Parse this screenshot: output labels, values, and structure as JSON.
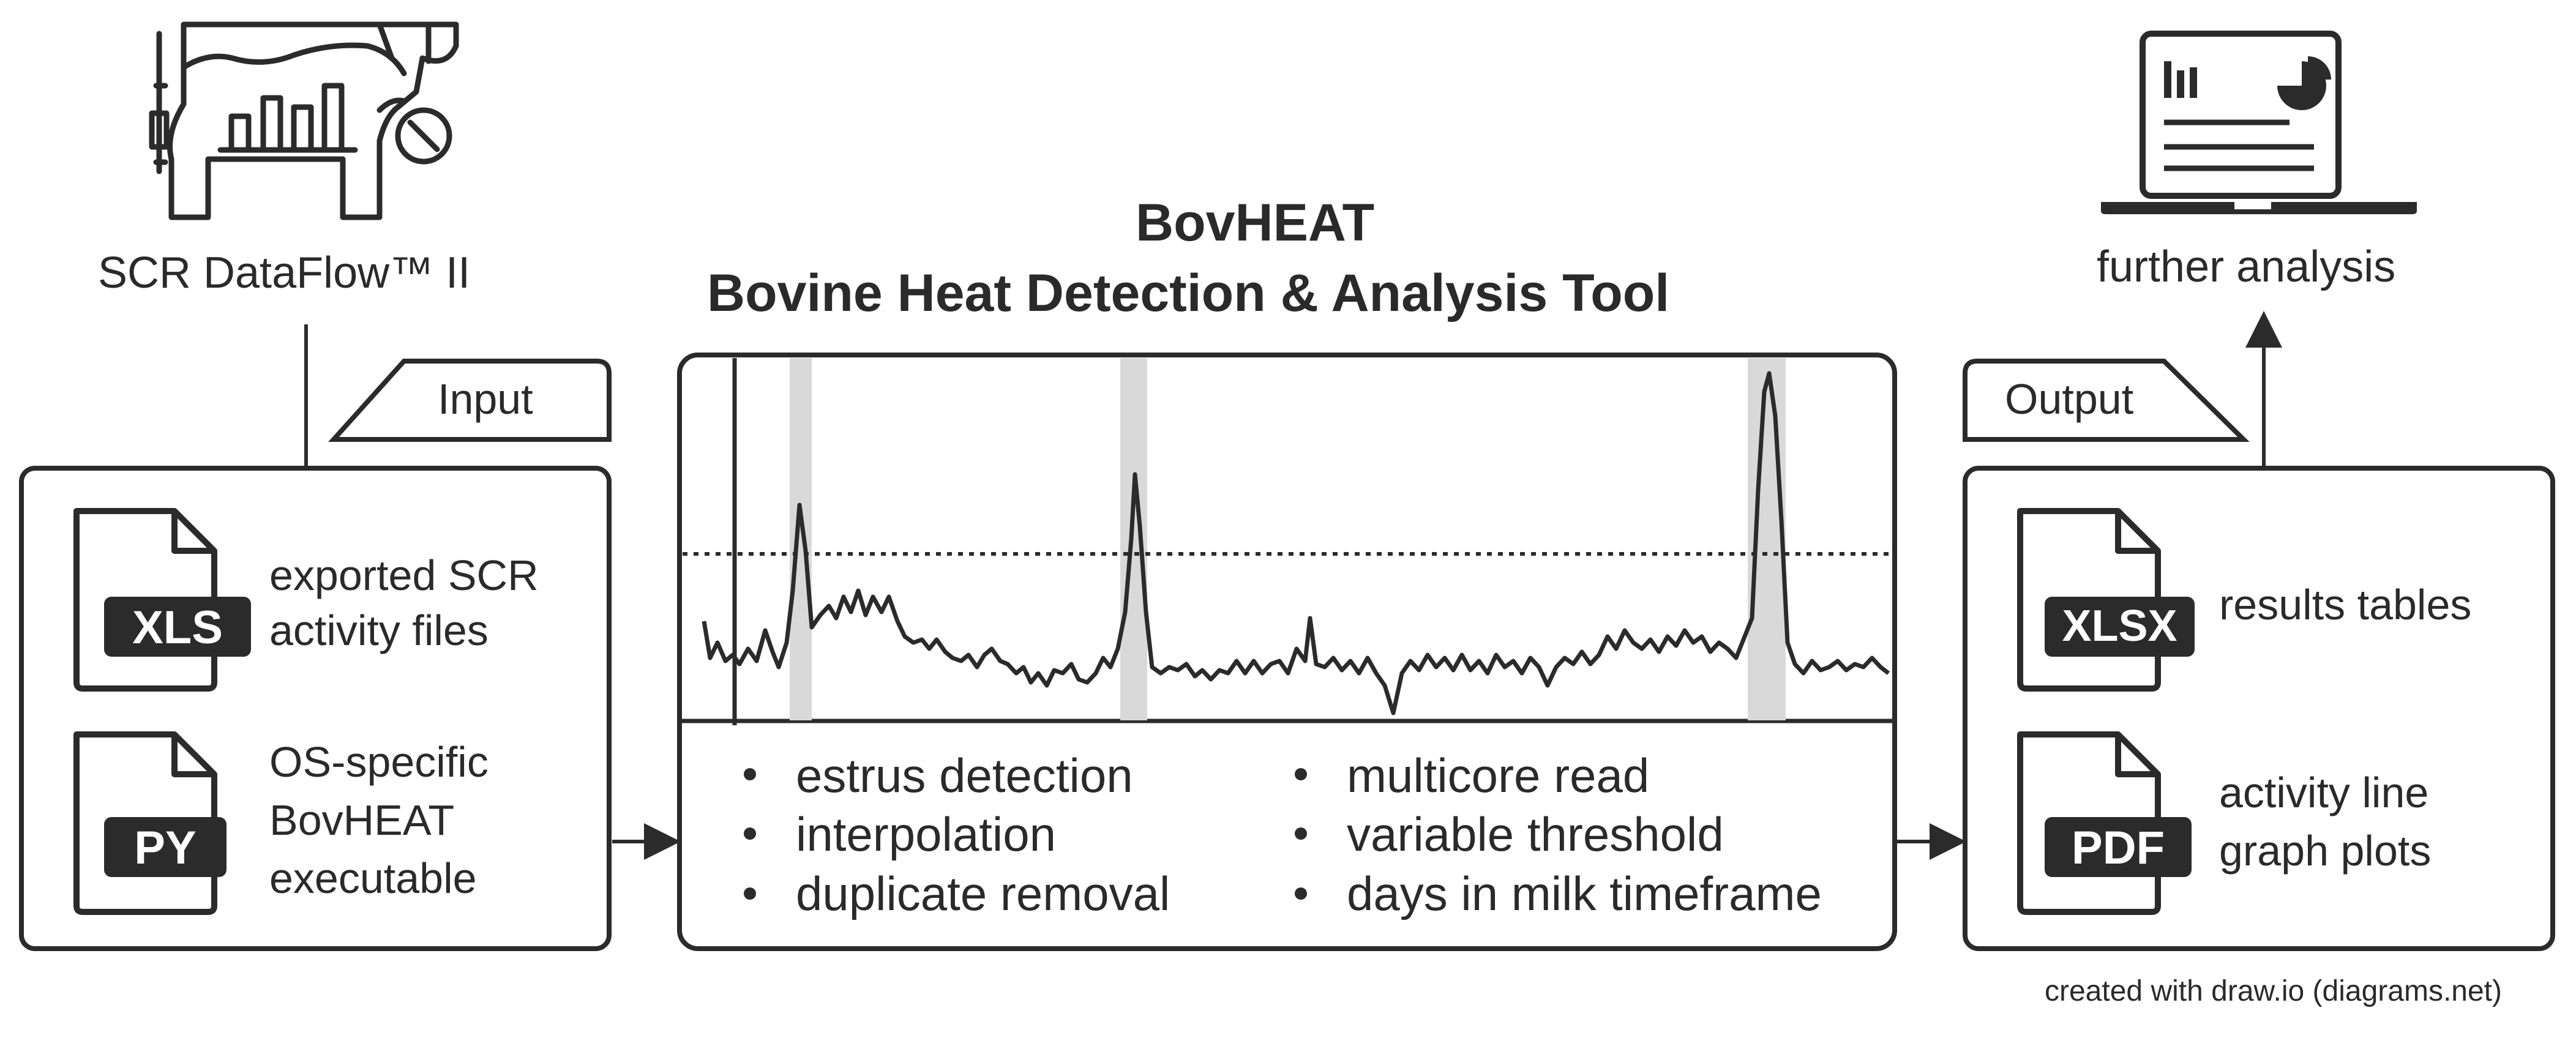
{
  "source": {
    "label": "SCR DataFlow™ II"
  },
  "tool": {
    "title_line1": "BovHEAT",
    "title_line2": "Bovine Heat Detection & Analysis Tool",
    "features_left": [
      "estrus detection",
      "interpolation",
      "duplicate removal"
    ],
    "features_right": [
      "multicore read",
      "variable threshold",
      "days in milk timeframe"
    ]
  },
  "input": {
    "tab_label": "Input",
    "files": [
      {
        "badge": "XLS",
        "line1": "exported SCR",
        "line2": "activity files",
        "line3": ""
      },
      {
        "badge": "PY",
        "line1": "OS-specific",
        "line2": "BovHEAT",
        "line3": "executable"
      }
    ]
  },
  "output": {
    "tab_label": "Output",
    "files": [
      {
        "badge": "XLSX",
        "line1": "results tables",
        "line2": ""
      },
      {
        "badge": "PDF",
        "line1": "activity line",
        "line2": "graph plots"
      }
    ]
  },
  "further": {
    "label": "further analysis"
  },
  "footer": {
    "credit": "created with draw.io (diagrams.net)"
  },
  "colors": {
    "ink": "#2b2b2b",
    "highlight": "#d9d9d9",
    "badge_text": "#ffffff"
  },
  "icons": [
    "cow-dashboard-icon",
    "laptop-charts-icon",
    "xls-file-icon",
    "py-file-icon",
    "xlsx-file-icon",
    "pdf-file-icon"
  ]
}
